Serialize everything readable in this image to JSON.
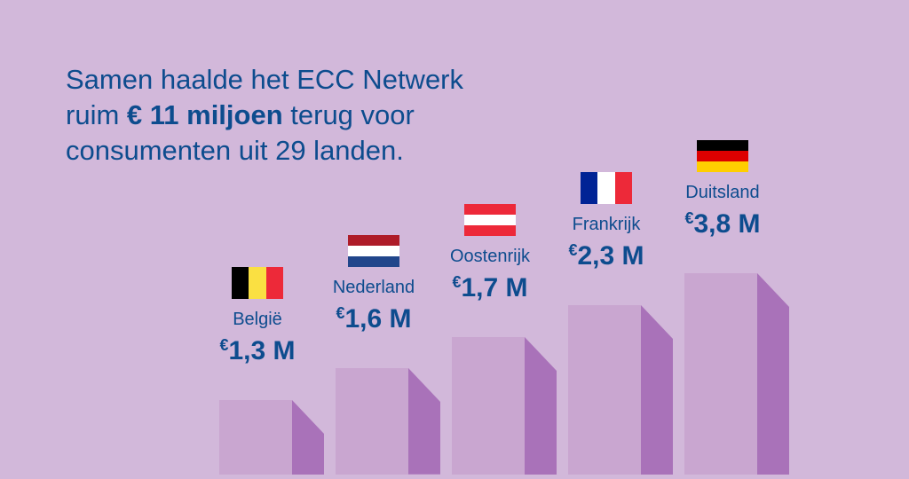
{
  "headline": {
    "line1": "Samen haalde het ECC Netwerk",
    "line2_pre": "ruim ",
    "line2_bold": "€ 11 miljoen",
    "line2_post": " terug voor",
    "line3": "consumenten uit 29 landen."
  },
  "colors": {
    "background": "#d2b8da",
    "bar_front": "#c9a6d0",
    "bar_side": "#a972b9",
    "text": "#0d4c8e"
  },
  "chart_data": {
    "type": "bar",
    "categories": [
      "België",
      "Nederland",
      "Oostenrijk",
      "Frankrijk",
      "Duitsland"
    ],
    "values": [
      1.3,
      1.6,
      1.7,
      2.3,
      3.8
    ],
    "unit": "M €",
    "value_labels": [
      "1,3 M",
      "1,6 M",
      "1,7 M",
      "2,3 M",
      "3,8 M"
    ],
    "currency_symbol": "€",
    "flags": [
      {
        "dir": "v",
        "colors": [
          "#000000",
          "#fae042",
          "#ed2939"
        ]
      },
      {
        "dir": "h",
        "colors": [
          "#ae1c28",
          "#ffffff",
          "#21468b"
        ]
      },
      {
        "dir": "h",
        "colors": [
          "#ed2939",
          "#ffffff",
          "#ed2939"
        ]
      },
      {
        "dir": "v",
        "colors": [
          "#002395",
          "#ffffff",
          "#ed2939"
        ]
      },
      {
        "dir": "h",
        "colors": [
          "#000000",
          "#dd0000",
          "#ffce00"
        ]
      }
    ]
  }
}
